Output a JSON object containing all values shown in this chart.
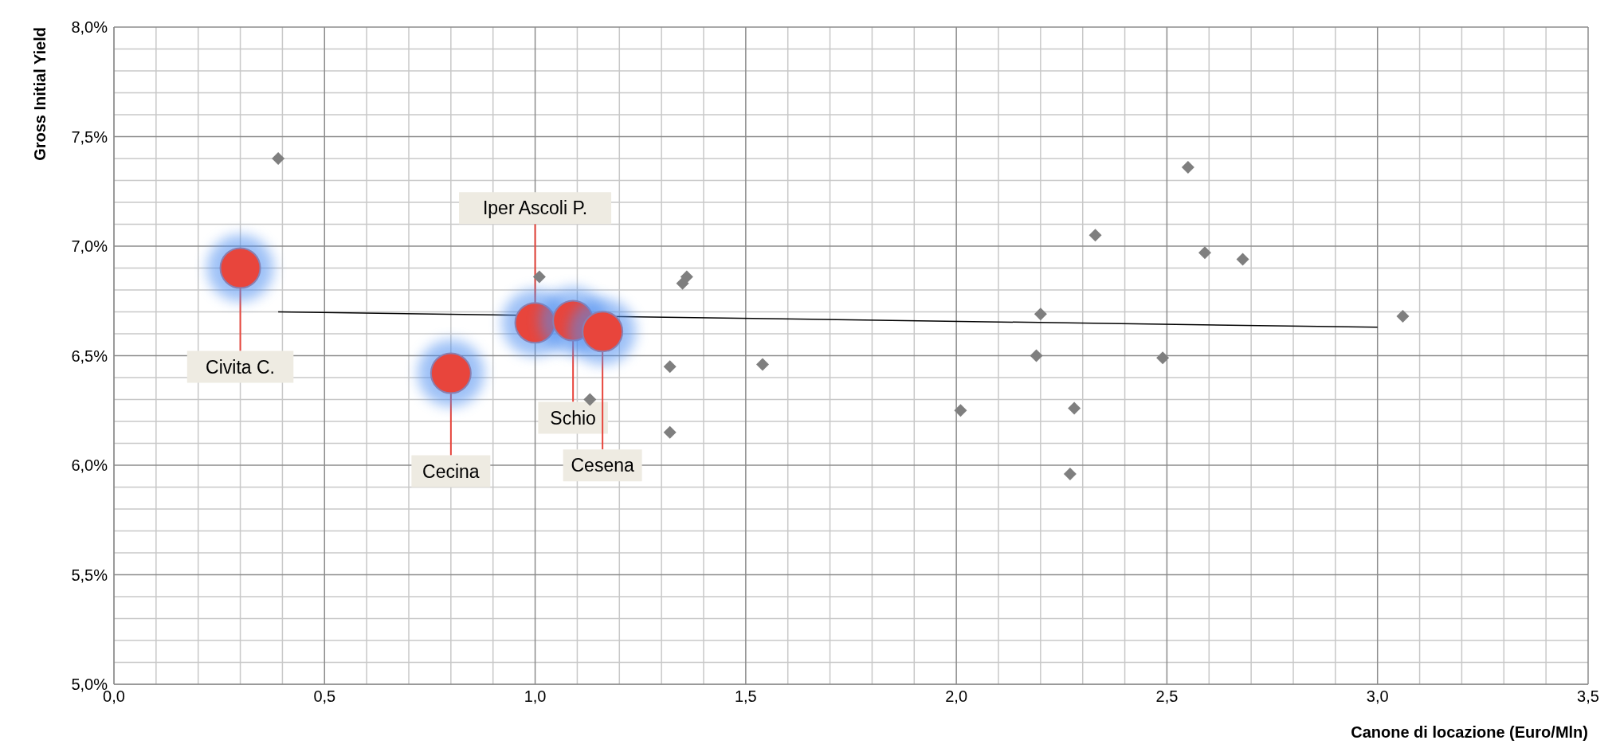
{
  "chart_data": {
    "type": "scatter",
    "ylabel": "Gross Initial Yield",
    "xlabel": "Canone di locazione (Euro/Mln)",
    "xlim": [
      0,
      3.5
    ],
    "xticks": [
      {
        "value": 0,
        "label": "0,0"
      },
      {
        "value": 0.5,
        "label": "0,5"
      },
      {
        "value": 1,
        "label": "1,0"
      },
      {
        "value": 1.5,
        "label": "1,5"
      },
      {
        "value": 2,
        "label": "2,0"
      },
      {
        "value": 2.5,
        "label": "2,5"
      },
      {
        "value": 3,
        "label": "3,0"
      },
      {
        "value": 3.5,
        "label": "3,5"
      }
    ],
    "ylim": [
      5,
      8
    ],
    "yticks": [
      {
        "value": 5,
        "label": "5,0%"
      },
      {
        "value": 5.5,
        "label": "5,5%"
      },
      {
        "value": 6,
        "label": "6,0%"
      },
      {
        "value": 6.5,
        "label": "6,5%"
      },
      {
        "value": 7,
        "label": "7,0%"
      },
      {
        "value": 7.5,
        "label": "7,5%"
      },
      {
        "value": 8,
        "label": "8,0%"
      }
    ],
    "grid": true,
    "series": [
      {
        "marker": "diamond",
        "color": "#7f7f7f",
        "x": [
          0.39,
          1.01,
          1.35,
          1.36,
          1.32,
          1.13,
          1.32,
          1.54,
          2.01,
          2.2,
          2.19,
          2.27,
          2.28,
          2.33,
          2.49,
          2.55,
          2.59,
          2.68,
          3.06
        ],
        "values": [
          7.4,
          6.86,
          6.83,
          6.86,
          6.45,
          6.3,
          6.15,
          6.46,
          6.25,
          6.69,
          6.5,
          5.96,
          6.26,
          7.05,
          6.49,
          7.36,
          6.97,
          6.94,
          6.68
        ]
      },
      {
        "type": "line",
        "marker": "none",
        "color": "#000000",
        "x": [
          0.39,
          3.0
        ],
        "values": [
          6.7,
          6.63
        ]
      },
      {
        "marker": "circle",
        "color": "#e8453c",
        "x": [
          0.3,
          0.8,
          1.0,
          1.09,
          1.16
        ],
        "values": [
          6.9,
          6.42,
          6.65,
          6.66,
          6.61
        ]
      }
    ],
    "annotations": [
      {
        "text": "Civita C.",
        "x": 0.3,
        "y": 6.9
      },
      {
        "text": "Cecina",
        "x": 0.8,
        "y": 6.42
      },
      {
        "text": "Iper Ascoli P.",
        "x": 1.0,
        "y": 6.65
      },
      {
        "text": "Schio",
        "x": 1.09,
        "y": 6.66
      },
      {
        "text": "Cesena",
        "x": 1.16,
        "y": 6.61
      }
    ]
  }
}
